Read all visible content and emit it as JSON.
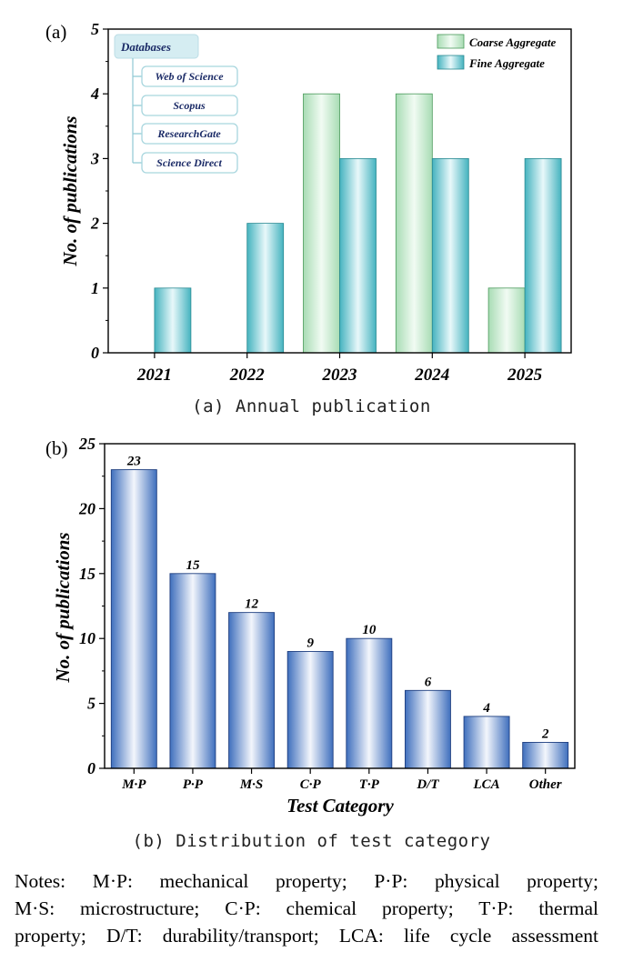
{
  "chart_data": [
    {
      "type": "bar",
      "panel_label": "(a)",
      "caption": "(a) Annual publication",
      "categories": [
        "2021",
        "2022",
        "2023",
        "2024",
        "2025"
      ],
      "series": [
        {
          "name": "Coarse Aggregate",
          "values": [
            0,
            0,
            4,
            4,
            1
          ],
          "color": "#cfeed6"
        },
        {
          "name": "Fine Aggregate",
          "values": [
            1,
            2,
            3,
            3,
            3
          ],
          "color": "#7fcfd6"
        }
      ],
      "ylabel": "No. of publications",
      "xlabel": "",
      "ylim": [
        0,
        5
      ],
      "yticks": [
        "0",
        "1",
        "2",
        "3",
        "4",
        "5"
      ],
      "legend_position": "top-right",
      "databases": {
        "title": "Databases",
        "items": [
          "Web of Science",
          "Scopus",
          "ResearchGate",
          "Science Direct"
        ]
      }
    },
    {
      "type": "bar",
      "panel_label": "(b)",
      "caption": "(b) Distribution of test category",
      "categories": [
        "M·P",
        "P·P",
        "M·S",
        "C·P",
        "T·P",
        "D/T",
        "LCA",
        "Other"
      ],
      "values": [
        23,
        15,
        12,
        9,
        10,
        6,
        4,
        2
      ],
      "value_labels": [
        "23",
        "15",
        "12",
        "9",
        "10",
        "6",
        "4",
        "2"
      ],
      "color": "#3f6fbd",
      "ylabel": "No. of publications",
      "xlabel": "Test Category",
      "ylim": [
        0,
        25
      ],
      "yticks": [
        "0",
        "5",
        "10",
        "15",
        "20",
        "25"
      ]
    }
  ],
  "notes": [
    "Notes: M·P: mechanical property; P·P: physical property;",
    "M·S: microstructure; C·P: chemical property; T·P: thermal",
    "property; D/T: durability/transport; LCA: life cycle assessment"
  ]
}
